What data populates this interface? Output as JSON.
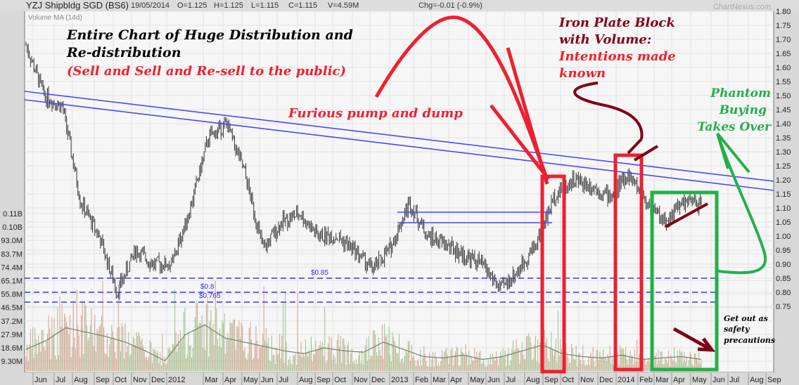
{
  "header": {
    "title": "YZJ Shipbldg SGD (BS6)",
    "date": "19/05/2014",
    "open": "O=1.125",
    "high": "H=1.125",
    "low": "L=1.115",
    "close": "C=1.115",
    "volume": "V=4.59M",
    "change": "Chg=-0.01 (-0.9%)",
    "watermark": "ChartNexus.com",
    "indicator": "Volume MA (14d)"
  },
  "annotations": {
    "main_title_1": "Entire Chart of Huge Distribution and",
    "main_title_2": "Re-distribution",
    "main_subtitle": "(Sell and Sell and Re-sell to the public)",
    "pump": "Furious pump and dump",
    "iron_1": "Iron Plate Block",
    "iron_2": "with Volume:",
    "iron_3": "Intentions made",
    "iron_4": "known",
    "phantom_1": "Phantom",
    "phantom_2": "Buying",
    "phantom_3": "Takes Over",
    "getout_1": "Get out as",
    "getout_2": "safety",
    "getout_3": "precautions"
  },
  "colors": {
    "price_bars": "#333333",
    "volume_up": "#9cc08a",
    "volume_down": "#d4a08a",
    "volume_ma": "#7a8a70",
    "trendline": "#4040ff",
    "red_annotation": "#ee2030",
    "dark_red_annotation": "#800018",
    "green_annotation": "#22b04a"
  },
  "chart_data": {
    "type": "ohlc-bar-with-volume",
    "price_axis": {
      "range": [
        0.75,
        1.8
      ],
      "ticks": [
        "1.80",
        "1.75",
        "1.70",
        "1.65",
        "1.60",
        "1.55",
        "1.50",
        "1.45",
        "1.40",
        "1.35",
        "1.30",
        "1.25",
        "1.20",
        "1.15",
        "1.10",
        "1.05",
        "1.00",
        "0.95",
        "0.90",
        "0.85",
        "0.80",
        "0.75"
      ]
    },
    "volume_axis": {
      "ticks": [
        "0.11B",
        "0.10B",
        "93.0M",
        "83.7M",
        "74.4M",
        "65.1M",
        "55.8M",
        "46.5M",
        "37.2M",
        "27.9M",
        "18.6M",
        "9.30M"
      ]
    },
    "x_ticks": [
      "Jun",
      "Jul",
      "Aug",
      "Sep",
      "Oct",
      "Nov",
      "Dec",
      "2012",
      "Mar",
      "Apr",
      "May",
      "Jun",
      "Jul",
      "Aug",
      "Sep",
      "Oct",
      "Nov",
      "Dec",
      "2013",
      "Feb",
      "Mar",
      "Apr",
      "May",
      "Jun",
      "Jul",
      "Aug",
      "Sep",
      "Oct",
      "Nov",
      "Dec",
      "2014",
      "Feb",
      "Mar",
      "Apr",
      "May",
      "Jun",
      "Jul",
      "Aug",
      "Sep"
    ],
    "price_path_approx": [
      [
        "2011-05",
        1.68
      ],
      [
        "2011-06",
        1.5
      ],
      [
        "2011-07",
        1.46
      ],
      [
        "2011-08",
        1.12
      ],
      [
        "2011-09",
        1.0
      ],
      [
        "2011-10",
        0.8
      ],
      [
        "2011-10b",
        0.95
      ],
      [
        "2011-11",
        0.9
      ],
      [
        "2011-12",
        0.9
      ],
      [
        "2012-01",
        1.1
      ],
      [
        "2012-02",
        1.35
      ],
      [
        "2012-03",
        1.4
      ],
      [
        "2012-04",
        1.22
      ],
      [
        "2012-05",
        0.95
      ],
      [
        "2012-06",
        1.05
      ],
      [
        "2012-07",
        1.08
      ],
      [
        "2012-08",
        1.0
      ],
      [
        "2012-09",
        1.0
      ],
      [
        "2012-10",
        0.95
      ],
      [
        "2012-11",
        0.88
      ],
      [
        "2012-12",
        0.96
      ],
      [
        "2013-01",
        1.12
      ],
      [
        "2013-02",
        1.0
      ],
      [
        "2013-03",
        0.97
      ],
      [
        "2013-04",
        0.93
      ],
      [
        "2013-05",
        0.9
      ],
      [
        "2013-06",
        0.81
      ],
      [
        "2013-07",
        0.88
      ],
      [
        "2013-08",
        0.98
      ],
      [
        "2013-09",
        1.15
      ],
      [
        "2013-10",
        1.2
      ],
      [
        "2013-11",
        1.18
      ],
      [
        "2013-12",
        1.14
      ],
      [
        "2014-01",
        1.22
      ],
      [
        "2014-02",
        1.12
      ],
      [
        "2014-03",
        1.05
      ],
      [
        "2014-04",
        1.12
      ],
      [
        "2014-05",
        1.115
      ]
    ],
    "volume_ma_approx_millions": [
      15,
      21,
      30,
      27,
      24,
      20,
      14,
      7,
      25,
      32,
      23,
      20,
      17,
      14,
      12,
      16,
      14,
      13,
      20,
      15,
      10,
      9,
      11,
      8,
      10,
      14,
      18,
      12,
      10,
      9,
      11,
      8,
      9,
      10,
      8
    ],
    "support_lines": [
      {
        "label": "$0.85",
        "value": 0.85
      },
      {
        "label": "$0.8",
        "value": 0.8
      },
      {
        "label": "$0.765",
        "value": 0.765
      }
    ],
    "grid": true
  }
}
